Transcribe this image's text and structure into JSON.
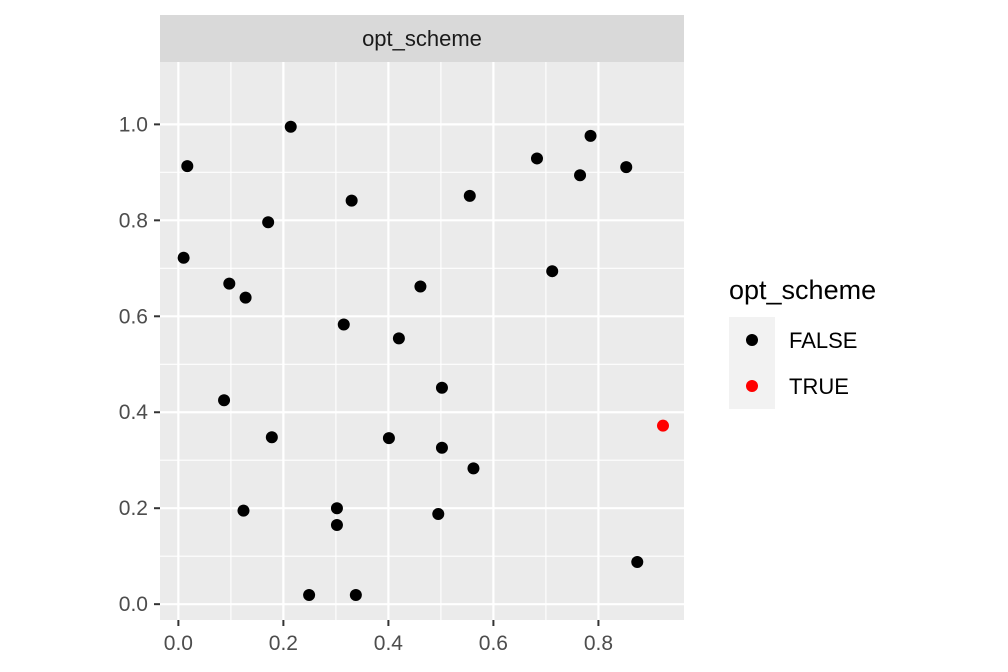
{
  "chart_data": {
    "type": "scatter",
    "facet_label": "opt_scheme",
    "xlabel": "",
    "ylabel": "",
    "xlim": [
      -0.035,
      0.963
    ],
    "ylim": [
      -0.033,
      1.13
    ],
    "x_ticks": [
      0.0,
      0.2,
      0.4,
      0.6,
      0.8
    ],
    "x_tick_labels": [
      "0.0",
      "0.2",
      "0.4",
      "0.6",
      "0.8"
    ],
    "y_ticks": [
      0.0,
      0.2,
      0.4,
      0.6,
      0.8,
      1.0
    ],
    "y_tick_labels": [
      "0.0",
      "0.2",
      "0.4",
      "0.6",
      "0.8",
      "1.0"
    ],
    "grid": true,
    "legend": {
      "title": "opt_scheme",
      "placement": "right",
      "entries": [
        {
          "label": "FALSE",
          "color": "#000000"
        },
        {
          "label": "TRUE",
          "color": "#ff0000"
        }
      ]
    },
    "series": [
      {
        "name": "FALSE",
        "color": "#000000",
        "points": [
          {
            "x": 0.214,
            "y": 0.995
          },
          {
            "x": 0.017,
            "y": 0.913
          },
          {
            "x": 0.33,
            "y": 0.841
          },
          {
            "x": 0.171,
            "y": 0.796
          },
          {
            "x": 0.01,
            "y": 0.722
          },
          {
            "x": 0.097,
            "y": 0.668
          },
          {
            "x": 0.128,
            "y": 0.639
          },
          {
            "x": 0.315,
            "y": 0.583
          },
          {
            "x": 0.087,
            "y": 0.425
          },
          {
            "x": 0.178,
            "y": 0.348
          },
          {
            "x": 0.124,
            "y": 0.195
          },
          {
            "x": 0.302,
            "y": 0.2
          },
          {
            "x": 0.302,
            "y": 0.165
          },
          {
            "x": 0.249,
            "y": 0.019
          },
          {
            "x": 0.338,
            "y": 0.019
          },
          {
            "x": 0.401,
            "y": 0.346
          },
          {
            "x": 0.42,
            "y": 0.554
          },
          {
            "x": 0.461,
            "y": 0.662
          },
          {
            "x": 0.502,
            "y": 0.451
          },
          {
            "x": 0.502,
            "y": 0.326
          },
          {
            "x": 0.562,
            "y": 0.283
          },
          {
            "x": 0.495,
            "y": 0.188
          },
          {
            "x": 0.555,
            "y": 0.851
          },
          {
            "x": 0.683,
            "y": 0.929
          },
          {
            "x": 0.712,
            "y": 0.694
          },
          {
            "x": 0.765,
            "y": 0.894
          },
          {
            "x": 0.785,
            "y": 0.976
          },
          {
            "x": 0.853,
            "y": 0.911
          },
          {
            "x": 0.874,
            "y": 0.088
          }
        ]
      },
      {
        "name": "TRUE",
        "color": "#ff0000",
        "points": [
          {
            "x": 0.923,
            "y": 0.372
          }
        ]
      }
    ]
  }
}
